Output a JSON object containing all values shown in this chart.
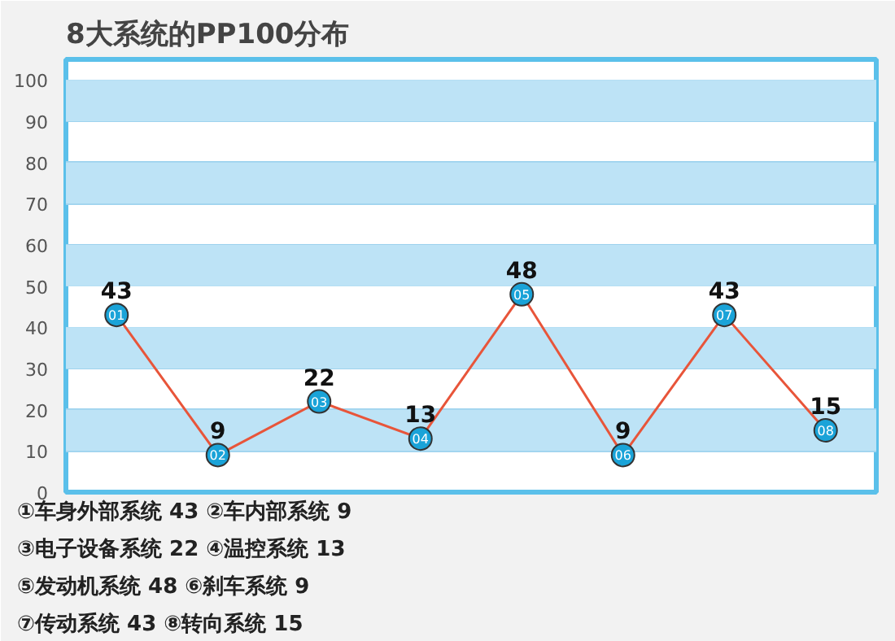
{
  "chart_data": {
    "type": "line",
    "title": "8大系统的PP100分布",
    "categories": [
      "01",
      "02",
      "03",
      "04",
      "05",
      "06",
      "07",
      "08"
    ],
    "series": [
      {
        "color": "#e8553a",
        "values": [
          43,
          9,
          22,
          13,
          48,
          9,
          43,
          15
        ]
      }
    ],
    "ylim": [
      0,
      105
    ],
    "yticks": [
      0,
      10,
      20,
      30,
      40,
      50,
      60,
      70,
      80,
      90,
      100
    ],
    "grid": "y",
    "bands": [
      {
        "axis": "y",
        "from": 10,
        "to": 20,
        "color": "#bde3f6"
      },
      {
        "axis": "y",
        "from": 30,
        "to": 40,
        "color": "#bde3f6"
      },
      {
        "axis": "y",
        "from": 50,
        "to": 60,
        "color": "#bde3f6"
      },
      {
        "axis": "y",
        "from": 70,
        "to": 80,
        "color": "#bde3f6"
      },
      {
        "axis": "y",
        "from": 90,
        "to": 100,
        "color": "#bde3f6"
      }
    ],
    "marker": "circle",
    "data_labels": true,
    "line_style": "solid",
    "tick_labels": "y",
    "annotations": [
      "①车身外部系统 43 ②车内部系统 9",
      "③电子设备系统 22 ④温控系统 13",
      "⑤发动机系统 48 ⑥刹车系统 9",
      "⑦传动系统 43 ⑧转向系统 15"
    ]
  }
}
